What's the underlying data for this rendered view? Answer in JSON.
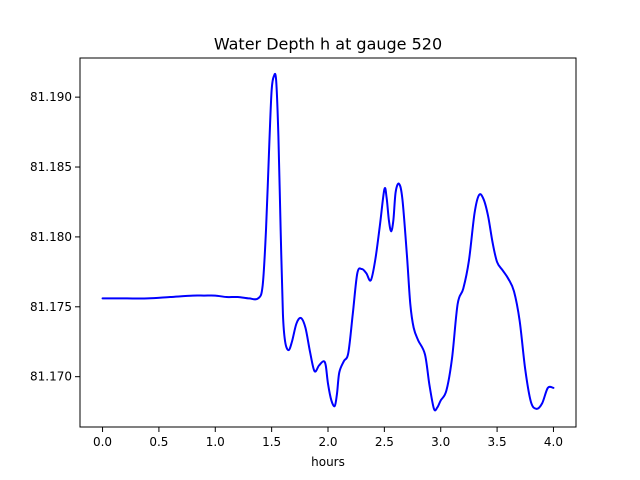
{
  "chart_data": {
    "type": "line",
    "title": "Water Depth h at gauge 520",
    "xlabel": "hours",
    "ylabel": "",
    "xlim": [
      -0.2,
      4.2
    ],
    "ylim": [
      81.1664,
      81.1928
    ],
    "grid": false,
    "legend": "none",
    "x_ticks": [
      0.0,
      0.5,
      1.0,
      1.5,
      2.0,
      2.5,
      3.0,
      3.5,
      4.0
    ],
    "x_tick_labels": [
      "0.0",
      "0.5",
      "1.0",
      "1.5",
      "2.0",
      "2.5",
      "3.0",
      "3.5",
      "4.0"
    ],
    "y_ticks": [
      81.17,
      81.175,
      81.18,
      81.185,
      81.19
    ],
    "y_tick_labels": [
      "81.170",
      "81.175",
      "81.180",
      "81.185",
      "81.190"
    ],
    "series": [
      {
        "color": "#0000ff",
        "x": [
          0.0,
          0.2,
          0.4,
          0.6,
          0.8,
          0.9,
          1.0,
          1.1,
          1.2,
          1.3,
          1.38,
          1.42,
          1.45,
          1.48,
          1.5,
          1.52,
          1.54,
          1.56,
          1.58,
          1.6,
          1.62,
          1.65,
          1.68,
          1.72,
          1.76,
          1.8,
          1.84,
          1.88,
          1.92,
          1.96,
          1.98,
          2.0,
          2.03,
          2.06,
          2.08,
          2.1,
          2.14,
          2.18,
          2.22,
          2.26,
          2.3,
          2.34,
          2.38,
          2.42,
          2.46,
          2.5,
          2.52,
          2.54,
          2.56,
          2.58,
          2.6,
          2.63,
          2.66,
          2.7,
          2.73,
          2.76,
          2.8,
          2.86,
          2.9,
          2.94,
          2.97,
          3.0,
          3.05,
          3.1,
          3.15,
          3.2,
          3.25,
          3.3,
          3.34,
          3.38,
          3.42,
          3.46,
          3.5,
          3.55,
          3.6,
          3.65,
          3.7,
          3.75,
          3.8,
          3.85,
          3.9,
          3.95,
          4.0
        ],
        "y": [
          81.1756,
          81.1756,
          81.1756,
          81.1757,
          81.1758,
          81.1758,
          81.1758,
          81.1757,
          81.1757,
          81.1756,
          81.1756,
          81.1765,
          81.1805,
          81.1868,
          81.1905,
          81.1915,
          81.1912,
          81.1872,
          81.1805,
          81.1745,
          81.1725,
          81.1719,
          81.1725,
          81.1738,
          81.1742,
          81.1735,
          81.1718,
          81.1704,
          81.1708,
          81.1711,
          81.1708,
          81.1695,
          81.1683,
          81.1679,
          81.1688,
          81.1703,
          81.1711,
          81.1717,
          81.1745,
          81.1774,
          81.1777,
          81.1774,
          81.1769,
          81.1784,
          81.1808,
          81.1834,
          81.1828,
          81.1812,
          81.1804,
          81.1812,
          81.1832,
          81.1838,
          81.1827,
          81.1787,
          81.1752,
          81.1735,
          81.1726,
          81.1716,
          81.1694,
          81.1677,
          81.1678,
          81.1683,
          81.169,
          81.1713,
          81.1752,
          81.1763,
          81.1783,
          81.1817,
          81.183,
          81.1827,
          81.1815,
          81.1796,
          81.1782,
          81.1776,
          81.177,
          81.1761,
          81.174,
          81.1705,
          81.1682,
          81.1677,
          81.1681,
          81.1692,
          81.1692
        ]
      }
    ]
  }
}
